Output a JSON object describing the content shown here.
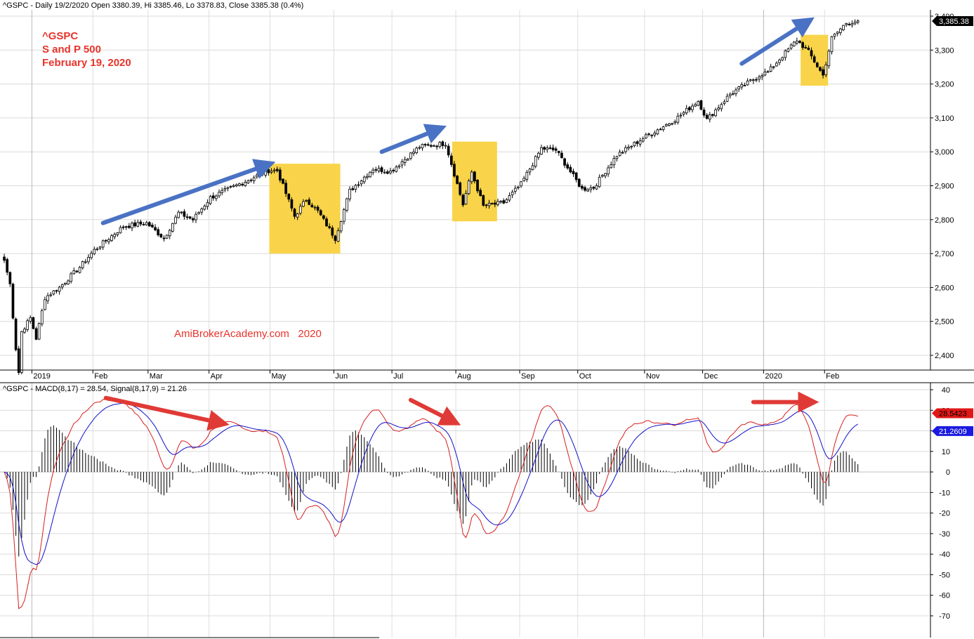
{
  "chart_data": [
    {
      "type": "candlestick",
      "header": "^GSPC - Daily 19/2/2020 Open 3380.39, Hi 3385.46, Lo 3378.83, Close 3385.38 (0.4%)",
      "annotations": [
        "^GSPC",
        "S and P 500",
        "February 19, 2020"
      ],
      "watermark": "AmiBrokerAcademy.com   2020",
      "last_value_label": "3,385.38",
      "ylim": [
        2330,
        3420
      ],
      "yticks": [
        2400,
        2500,
        2600,
        2700,
        2800,
        2900,
        3000,
        3100,
        3200,
        3300,
        3400
      ],
      "ytick_labels": [
        "2,400",
        "2,500",
        "2,600",
        "2,700",
        "2,800",
        "2,900",
        "3,000",
        "3,100",
        "3,200",
        "3,300",
        "3,400"
      ],
      "xlim": [
        "2018-12-17",
        "2020-02-24"
      ],
      "xticks": [
        {
          "date": "2019-01-02",
          "label": "2019",
          "bold": true
        },
        {
          "date": "2019-02-01",
          "label": "Feb"
        },
        {
          "date": "2019-03-01",
          "label": "Mar"
        },
        {
          "date": "2019-04-01",
          "label": "Apr"
        },
        {
          "date": "2019-05-01",
          "label": "May"
        },
        {
          "date": "2019-06-03",
          "label": "Jun"
        },
        {
          "date": "2019-07-01",
          "label": "Jul"
        },
        {
          "date": "2019-08-01",
          "label": "Aug"
        },
        {
          "date": "2019-09-03",
          "label": "Sep"
        },
        {
          "date": "2019-10-01",
          "label": "Oct"
        },
        {
          "date": "2019-11-01",
          "label": "Nov"
        },
        {
          "date": "2019-12-02",
          "label": "Dec"
        },
        {
          "date": "2020-01-02",
          "label": "2020",
          "bold": true
        },
        {
          "date": "2020-02-03",
          "label": "Feb"
        }
      ],
      "close_anchors": [
        [
          "2018-12-17",
          2680
        ],
        [
          "2018-12-19",
          2610
        ],
        [
          "2018-12-21",
          2420
        ],
        [
          "2018-12-24",
          2350
        ],
        [
          "2018-12-26",
          2470
        ],
        [
          "2018-12-31",
          2510
        ],
        [
          "2019-01-03",
          2450
        ],
        [
          "2019-01-08",
          2570
        ],
        [
          "2019-01-15",
          2600
        ],
        [
          "2019-01-25",
          2660
        ],
        [
          "2019-02-01",
          2710
        ],
        [
          "2019-02-15",
          2780
        ],
        [
          "2019-02-28",
          2790
        ],
        [
          "2019-03-08",
          2745
        ],
        [
          "2019-03-15",
          2820
        ],
        [
          "2019-03-22",
          2800
        ],
        [
          "2019-04-01",
          2865
        ],
        [
          "2019-04-15",
          2905
        ],
        [
          "2019-04-30",
          2945
        ],
        [
          "2019-05-03",
          2945
        ],
        [
          "2019-05-13",
          2810
        ],
        [
          "2019-05-17",
          2860
        ],
        [
          "2019-05-23",
          2825
        ],
        [
          "2019-06-03",
          2745
        ],
        [
          "2019-06-10",
          2885
        ],
        [
          "2019-06-20",
          2950
        ],
        [
          "2019-06-28",
          2942
        ],
        [
          "2019-07-15",
          3015
        ],
        [
          "2019-07-26",
          3025
        ],
        [
          "2019-08-05",
          2845
        ],
        [
          "2019-08-08",
          2940
        ],
        [
          "2019-08-14",
          2840
        ],
        [
          "2019-08-23",
          2850
        ],
        [
          "2019-09-03",
          2905
        ],
        [
          "2019-09-12",
          3010
        ],
        [
          "2019-09-19",
          3005
        ],
        [
          "2019-10-02",
          2890
        ],
        [
          "2019-10-08",
          2895
        ],
        [
          "2019-10-18",
          2990
        ],
        [
          "2019-10-31",
          3040
        ],
        [
          "2019-11-15",
          3095
        ],
        [
          "2019-11-27",
          3150
        ],
        [
          "2019-12-03",
          3095
        ],
        [
          "2019-12-13",
          3170
        ],
        [
          "2019-12-31",
          3230
        ],
        [
          "2020-01-03",
          3235
        ],
        [
          "2020-01-17",
          3330
        ],
        [
          "2020-01-24",
          3295
        ],
        [
          "2020-01-31",
          3225
        ],
        [
          "2020-02-05",
          3335
        ],
        [
          "2020-02-12",
          3380
        ],
        [
          "2020-02-19",
          3386
        ]
      ],
      "highlight_boxes": [
        {
          "from": "2019-05-01",
          "to": "2019-06-04",
          "low": 2700,
          "high": 2965
        },
        {
          "from": "2019-07-31",
          "to": "2019-08-20",
          "low": 2795,
          "high": 3030
        },
        {
          "from": "2020-01-22",
          "to": "2020-02-03",
          "low": 3195,
          "high": 3345
        }
      ],
      "trend_arrows": [
        {
          "from": [
            "2019-02-06",
            2790
          ],
          "to": [
            "2019-04-29",
            2960
          ]
        },
        {
          "from": [
            "2019-06-25",
            3000
          ],
          "to": [
            "2019-07-23",
            3065
          ]
        },
        {
          "from": [
            "2019-12-19",
            3260
          ],
          "to": [
            "2020-01-23",
            3380
          ]
        }
      ],
      "colors": {
        "up_body": "#ffffff",
        "down_body": "#000000",
        "highlight": "#f9d44a",
        "arrow": "#4a72c4",
        "annotation": "#e8342c",
        "badge_bg": "#000000"
      }
    },
    {
      "type": "macd",
      "header": "^GSPC - MACD(8,17) = 28.54, Signal(8,17,9) = 21.26",
      "ylim": [
        -78,
        44
      ],
      "yticks": [
        -70,
        -60,
        -50,
        -40,
        -30,
        -20,
        -10,
        0,
        10,
        20,
        30,
        40
      ],
      "macd_label": "28.5423",
      "signal_label": "21.2609",
      "arrows": [
        {
          "from": [
            "2019-02-07",
            36
          ],
          "to": [
            "2019-04-04",
            24
          ]
        },
        {
          "from": [
            "2019-07-10",
            35
          ],
          "to": [
            "2019-07-30",
            25
          ]
        },
        {
          "from": [
            "2019-12-26",
            34
          ],
          "to": [
            "2020-01-24",
            34
          ]
        }
      ],
      "colors": {
        "macd": "#d62020",
        "signal": "#1212c8",
        "histogram": "#000000",
        "arrow": "#e03a36",
        "macd_badge": "#e01818",
        "signal_badge": "#1a1ae0"
      }
    }
  ]
}
